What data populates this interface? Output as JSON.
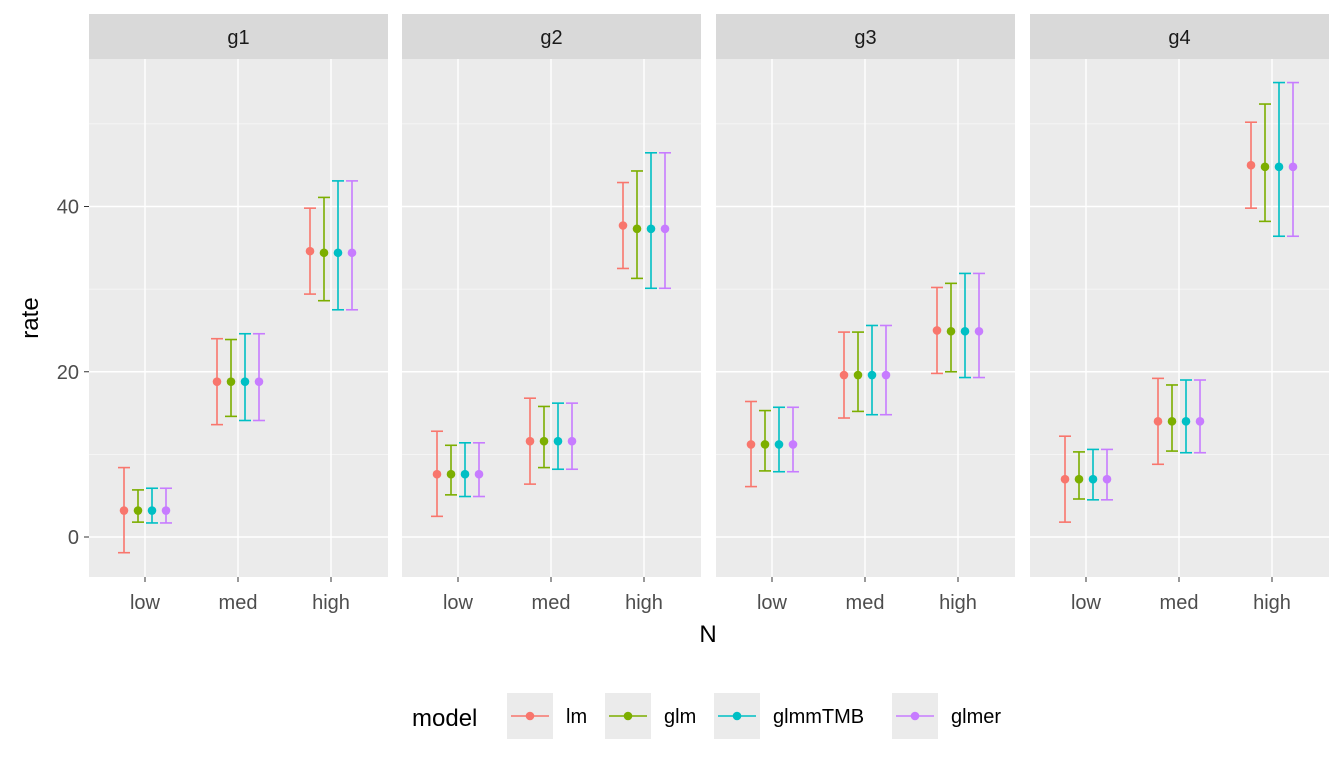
{
  "chart_data": {
    "type": "scatter",
    "subtype": "pointrange-errorbar",
    "facet_variable": "group",
    "panels": [
      "g1",
      "g2",
      "g3",
      "g4"
    ],
    "categories": [
      "low",
      "med",
      "high"
    ],
    "xlabel": "N",
    "ylabel": "rate",
    "ylim": [
      -5,
      59
    ],
    "yticks": [
      0,
      20,
      40
    ],
    "grid": true,
    "legend": {
      "title": "model",
      "position": "bottom"
    },
    "series": [
      {
        "name": "lm",
        "color": "#F8766D",
        "data": {
          "g1": [
            {
              "x": "low",
              "y": 3.2,
              "lower": -1.9,
              "upper": 8.4
            },
            {
              "x": "med",
              "y": 18.8,
              "lower": 13.6,
              "upper": 24.0
            },
            {
              "x": "high",
              "y": 34.6,
              "lower": 29.4,
              "upper": 39.8
            }
          ],
          "g2": [
            {
              "x": "low",
              "y": 7.6,
              "lower": 2.5,
              "upper": 12.8
            },
            {
              "x": "med",
              "y": 11.6,
              "lower": 6.4,
              "upper": 16.8
            },
            {
              "x": "high",
              "y": 37.7,
              "lower": 32.5,
              "upper": 42.9
            }
          ],
          "g3": [
            {
              "x": "low",
              "y": 11.2,
              "lower": 6.1,
              "upper": 16.4
            },
            {
              "x": "med",
              "y": 19.6,
              "lower": 14.4,
              "upper": 24.8
            },
            {
              "x": "high",
              "y": 25.0,
              "lower": 19.8,
              "upper": 30.2
            }
          ],
          "g4": [
            {
              "x": "low",
              "y": 7.0,
              "lower": 1.8,
              "upper": 12.2
            },
            {
              "x": "med",
              "y": 14.0,
              "lower": 8.8,
              "upper": 19.2
            },
            {
              "x": "high",
              "y": 45.0,
              "lower": 39.8,
              "upper": 50.2
            }
          ]
        }
      },
      {
        "name": "glm",
        "color": "#7CAE00",
        "data": {
          "g1": [
            {
              "x": "low",
              "y": 3.2,
              "lower": 1.8,
              "upper": 5.7
            },
            {
              "x": "med",
              "y": 18.8,
              "lower": 14.6,
              "upper": 23.9
            },
            {
              "x": "high",
              "y": 34.4,
              "lower": 28.6,
              "upper": 41.1
            }
          ],
          "g2": [
            {
              "x": "low",
              "y": 7.6,
              "lower": 5.1,
              "upper": 11.1
            },
            {
              "x": "med",
              "y": 11.6,
              "lower": 8.4,
              "upper": 15.8
            },
            {
              "x": "high",
              "y": 37.3,
              "lower": 31.3,
              "upper": 44.3
            }
          ],
          "g3": [
            {
              "x": "low",
              "y": 11.2,
              "lower": 8.0,
              "upper": 15.3
            },
            {
              "x": "med",
              "y": 19.6,
              "lower": 15.2,
              "upper": 24.8
            },
            {
              "x": "high",
              "y": 24.9,
              "lower": 20.0,
              "upper": 30.7
            }
          ],
          "g4": [
            {
              "x": "low",
              "y": 7.0,
              "lower": 4.6,
              "upper": 10.3
            },
            {
              "x": "med",
              "y": 14.0,
              "lower": 10.4,
              "upper": 18.4
            },
            {
              "x": "high",
              "y": 44.8,
              "lower": 38.2,
              "upper": 52.4
            }
          ]
        }
      },
      {
        "name": "glmmTMB",
        "color": "#00BFC4",
        "data": {
          "g1": [
            {
              "x": "low",
              "y": 3.2,
              "lower": 1.7,
              "upper": 5.9
            },
            {
              "x": "med",
              "y": 18.8,
              "lower": 14.1,
              "upper": 24.6
            },
            {
              "x": "high",
              "y": 34.4,
              "lower": 27.5,
              "upper": 43.1
            }
          ],
          "g2": [
            {
              "x": "low",
              "y": 7.6,
              "lower": 4.9,
              "upper": 11.4
            },
            {
              "x": "med",
              "y": 11.6,
              "lower": 8.2,
              "upper": 16.2
            },
            {
              "x": "high",
              "y": 37.3,
              "lower": 30.1,
              "upper": 46.5
            }
          ],
          "g3": [
            {
              "x": "low",
              "y": 11.2,
              "lower": 7.9,
              "upper": 15.7
            },
            {
              "x": "med",
              "y": 19.6,
              "lower": 14.8,
              "upper": 25.6
            },
            {
              "x": "high",
              "y": 24.9,
              "lower": 19.3,
              "upper": 31.9
            }
          ],
          "g4": [
            {
              "x": "low",
              "y": 7.0,
              "lower": 4.5,
              "upper": 10.6
            },
            {
              "x": "med",
              "y": 14.0,
              "lower": 10.2,
              "upper": 19.0
            },
            {
              "x": "high",
              "y": 44.8,
              "lower": 36.4,
              "upper": 55.0
            }
          ]
        }
      },
      {
        "name": "glmer",
        "color": "#C77CFF",
        "data": {
          "g1": [
            {
              "x": "low",
              "y": 3.2,
              "lower": 1.7,
              "upper": 5.9
            },
            {
              "x": "med",
              "y": 18.8,
              "lower": 14.1,
              "upper": 24.6
            },
            {
              "x": "high",
              "y": 34.4,
              "lower": 27.5,
              "upper": 43.1
            }
          ],
          "g2": [
            {
              "x": "low",
              "y": 7.6,
              "lower": 4.9,
              "upper": 11.4
            },
            {
              "x": "med",
              "y": 11.6,
              "lower": 8.2,
              "upper": 16.2
            },
            {
              "x": "high",
              "y": 37.3,
              "lower": 30.1,
              "upper": 46.5
            }
          ],
          "g3": [
            {
              "x": "low",
              "y": 11.2,
              "lower": 7.9,
              "upper": 15.7
            },
            {
              "x": "med",
              "y": 19.6,
              "lower": 14.8,
              "upper": 25.6
            },
            {
              "x": "high",
              "y": 24.9,
              "lower": 19.3,
              "upper": 31.9
            }
          ],
          "g4": [
            {
              "x": "low",
              "y": 7.0,
              "lower": 4.5,
              "upper": 10.6
            },
            {
              "x": "med",
              "y": 14.0,
              "lower": 10.2,
              "upper": 19.0
            },
            {
              "x": "high",
              "y": 44.8,
              "lower": 36.4,
              "upper": 55.0
            }
          ]
        }
      }
    ]
  }
}
